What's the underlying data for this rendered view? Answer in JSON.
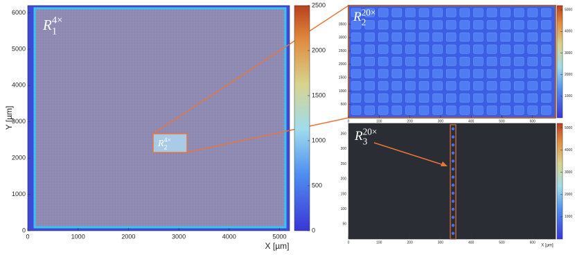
{
  "chart_data": [
    {
      "type": "heatmap",
      "xlabel": "X [µm]",
      "ylabel": "Y [µm]",
      "xlim": [
        0,
        5200
      ],
      "xticks": [
        0,
        1000,
        2000,
        3000,
        4000,
        5000
      ],
      "ylim": [
        0,
        6200
      ],
      "yticks": [
        0,
        1000,
        2000,
        3000,
        4000,
        5000,
        6000
      ],
      "colorbar": {
        "lim": [
          0,
          2500
        ],
        "ticks": [
          0,
          500,
          1000,
          1500,
          2000,
          2500
        ]
      },
      "annotations": [
        {
          "base": "R",
          "sub": "1",
          "sup": "4×"
        },
        {
          "base": "R",
          "sub": "2",
          "sup": "4×"
        }
      ]
    },
    {
      "type": "heatmap",
      "xlim": [
        0,
        675
      ],
      "xticks": [
        0,
        100,
        200,
        300,
        400,
        500,
        600
      ],
      "ylim": [
        0,
        4200
      ],
      "yticks": [
        500,
        1000,
        1500,
        2000,
        2500,
        3000,
        3500
      ],
      "colorbar": {
        "lim": [
          0,
          5200
        ],
        "ticks": [
          1000,
          2000,
          3000,
          4000,
          5000
        ]
      },
      "annotations": [
        {
          "base": "R",
          "sub": "2",
          "sup": "20×"
        }
      ]
    },
    {
      "type": "heatmap",
      "xlabel": "X [µm]",
      "xlim": [
        0,
        675
      ],
      "xticks": [
        0,
        100,
        200,
        300,
        400,
        500,
        600
      ],
      "ylim": [
        0,
        385
      ],
      "yticks": [
        50,
        100,
        150,
        200,
        250,
        300,
        350
      ],
      "colorbar": {
        "lim": [
          0,
          5200
        ],
        "ticks": [
          1000,
          2000,
          3000,
          4000,
          5000
        ]
      },
      "annotations": [
        {
          "base": "R",
          "sub": "3",
          "sup": "20×"
        }
      ]
    }
  ]
}
